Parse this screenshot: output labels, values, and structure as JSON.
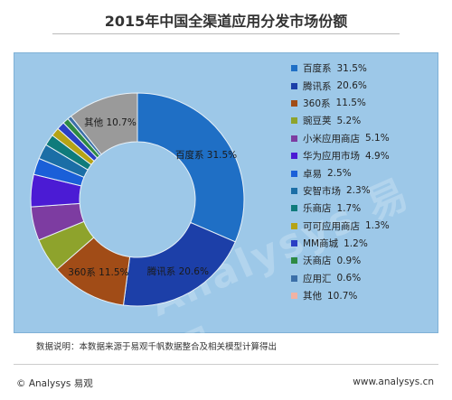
{
  "chart_data": {
    "type": "pie",
    "title": "2015年中国全渠道应用分发市场份额",
    "style": "donut",
    "legend_position": "right",
    "categories": [
      "百度系",
      "腾讯系",
      "360系",
      "豌豆荚",
      "小米应用商店",
      "华为应用市场",
      "卓易",
      "安智市场",
      "乐商店",
      "可可应用商店",
      "MM商城",
      "沃商店",
      "应用汇",
      "其他"
    ],
    "values": [
      31.5,
      20.6,
      11.5,
      5.2,
      5.1,
      4.9,
      2.5,
      2.3,
      1.7,
      1.3,
      1.2,
      0.9,
      0.6,
      10.7
    ],
    "value_labels": [
      "31.5%",
      "20.6%",
      "11.5%",
      "5.2%",
      "5.1%",
      "4.9%",
      "2.5%",
      "2.3%",
      "1.7%",
      "1.3%",
      "1.2%",
      "0.9%",
      "0.6%",
      "10.7%"
    ],
    "colors": [
      "#1f6fc5",
      "#1c3fa8",
      "#a14c17",
      "#8ea32c",
      "#7d3ca1",
      "#4b1bd4",
      "#1a5fd8",
      "#1b6ea6",
      "#0f7b7b",
      "#b6a315",
      "#2a3fc4",
      "#2e8a43",
      "#3b6fa8",
      "#f0b2a3"
    ],
    "slice_color_overrides": {
      "其他": "#9a9a9a"
    },
    "data_labels_shown": [
      "百度系",
      "腾讯系",
      "360系",
      "其他"
    ],
    "units": "%"
  },
  "watermark": "Analysys 易观",
  "source_note": "数据说明：本数据来源于易观千帆数据整合及相关模型计算得出",
  "footer": {
    "left": "© Analysys 易观",
    "right": "www.analysys.cn"
  }
}
